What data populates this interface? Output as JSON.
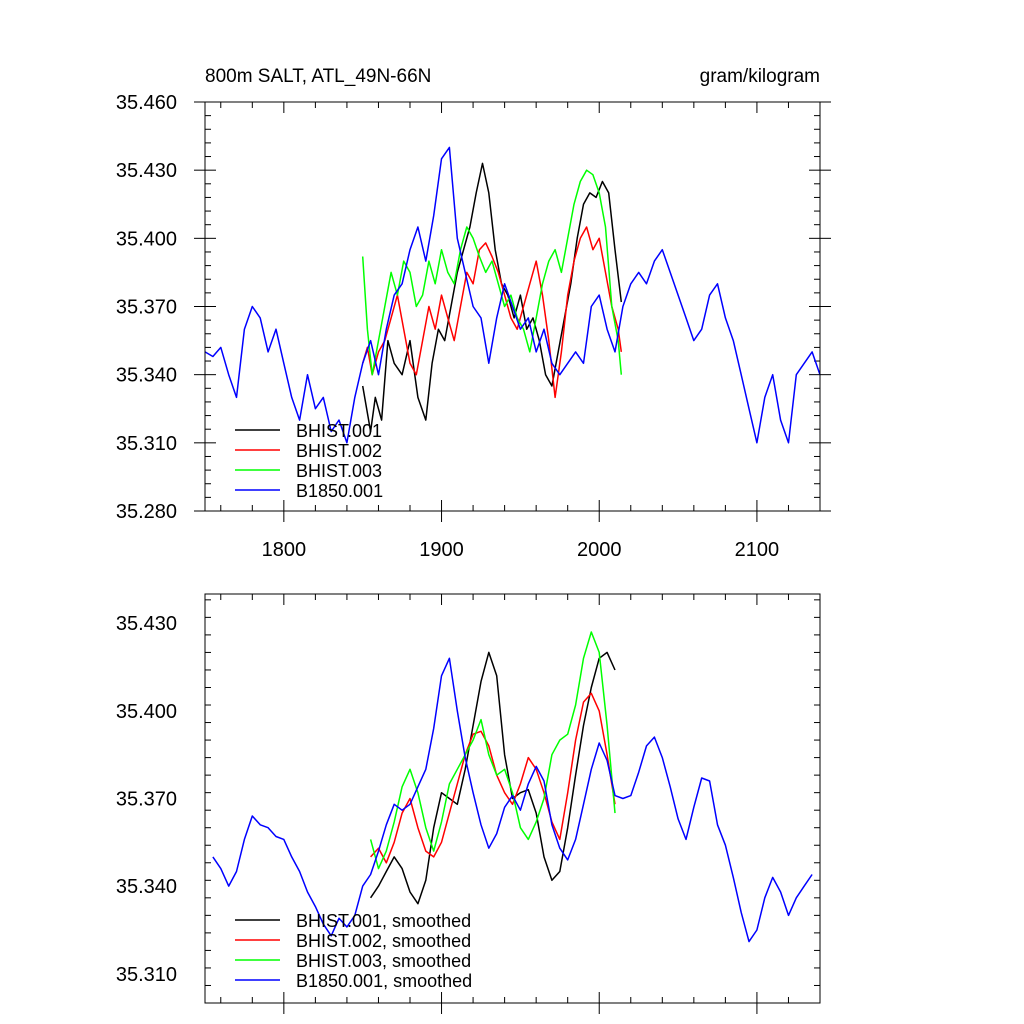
{
  "chart_data": [
    {
      "type": "line",
      "title_left": "800m SALT, ATL_49N-66N",
      "title_right": "gram/kilogram",
      "xlim": [
        1750,
        2140
      ],
      "ylim": [
        35.28,
        35.46
      ],
      "x_ticks": [
        "1800",
        "1900",
        "2000",
        "2100"
      ],
      "y_ticks": [
        "35.460",
        "35.430",
        "35.400",
        "35.370",
        "35.340",
        "35.310",
        "35.280"
      ],
      "legend_position": "bottom-left",
      "series": [
        {
          "name": "BHIST.001",
          "color": "#000000",
          "x": [
            1850,
            1855,
            1858,
            1862,
            1866,
            1870,
            1875,
            1880,
            1885,
            1890,
            1894,
            1898,
            1902,
            1906,
            1910,
            1914,
            1918,
            1922,
            1926,
            1930,
            1934,
            1938,
            1942,
            1946,
            1950,
            1954,
            1958,
            1962,
            1966,
            1970,
            1974,
            1978,
            1982,
            1986,
            1990,
            1994,
            1998,
            2002,
            2006,
            2010,
            2014
          ],
          "y": [
            35.335,
            35.315,
            35.33,
            35.32,
            35.355,
            35.345,
            35.34,
            35.355,
            35.33,
            35.32,
            35.345,
            35.36,
            35.355,
            35.37,
            35.385,
            35.395,
            35.405,
            35.42,
            35.433,
            35.42,
            35.395,
            35.38,
            35.375,
            35.365,
            35.375,
            35.36,
            35.365,
            35.355,
            35.34,
            35.335,
            35.35,
            35.365,
            35.38,
            35.4,
            35.415,
            35.42,
            35.418,
            35.425,
            35.42,
            35.395,
            35.372
          ]
        },
        {
          "name": "BHIST.002",
          "color": "#ff0000",
          "x": [
            1850,
            1853,
            1856,
            1860,
            1864,
            1868,
            1872,
            1876,
            1880,
            1884,
            1888,
            1892,
            1896,
            1900,
            1904,
            1908,
            1912,
            1916,
            1920,
            1924,
            1928,
            1932,
            1936,
            1940,
            1944,
            1948,
            1952,
            1956,
            1960,
            1964,
            1968,
            1972,
            1976,
            1980,
            1984,
            1988,
            1992,
            1996,
            2000,
            2004,
            2008,
            2012,
            2014
          ],
          "y": [
            35.345,
            35.352,
            35.34,
            35.35,
            35.355,
            35.365,
            35.375,
            35.36,
            35.345,
            35.34,
            35.355,
            35.37,
            35.36,
            35.375,
            35.365,
            35.355,
            35.37,
            35.385,
            35.38,
            35.395,
            35.398,
            35.392,
            35.385,
            35.375,
            35.365,
            35.36,
            35.37,
            35.38,
            35.39,
            35.375,
            35.355,
            35.33,
            35.35,
            35.375,
            35.39,
            35.4,
            35.405,
            35.395,
            35.4,
            35.385,
            35.37,
            35.36,
            35.35
          ]
        },
        {
          "name": "BHIST.003",
          "color": "#00ff00",
          "x": [
            1850,
            1853,
            1856,
            1860,
            1864,
            1868,
            1872,
            1876,
            1880,
            1884,
            1888,
            1892,
            1896,
            1900,
            1904,
            1908,
            1912,
            1916,
            1920,
            1924,
            1928,
            1932,
            1936,
            1940,
            1944,
            1948,
            1952,
            1956,
            1960,
            1964,
            1968,
            1972,
            1976,
            1980,
            1984,
            1988,
            1992,
            1996,
            2000,
            2004,
            2008,
            2012,
            2014
          ],
          "y": [
            35.392,
            35.36,
            35.34,
            35.355,
            35.37,
            35.385,
            35.375,
            35.39,
            35.385,
            35.37,
            35.375,
            35.39,
            35.38,
            35.395,
            35.385,
            35.38,
            35.395,
            35.405,
            35.4,
            35.392,
            35.385,
            35.39,
            35.38,
            35.37,
            35.375,
            35.365,
            35.36,
            35.35,
            35.365,
            35.38,
            35.39,
            35.395,
            35.385,
            35.4,
            35.415,
            35.425,
            35.43,
            35.428,
            35.42,
            35.405,
            35.37,
            35.355,
            35.34
          ]
        },
        {
          "name": "B1850.001",
          "color": "#0000ff",
          "x": [
            1750,
            1755,
            1760,
            1765,
            1770,
            1775,
            1780,
            1785,
            1790,
            1795,
            1800,
            1805,
            1810,
            1815,
            1820,
            1825,
            1830,
            1835,
            1840,
            1845,
            1850,
            1855,
            1860,
            1865,
            1870,
            1875,
            1880,
            1885,
            1890,
            1895,
            1900,
            1905,
            1910,
            1915,
            1920,
            1925,
            1930,
            1935,
            1940,
            1945,
            1950,
            1955,
            1960,
            1965,
            1970,
            1975,
            1980,
            1985,
            1990,
            1995,
            2000,
            2005,
            2010,
            2015,
            2020,
            2025,
            2030,
            2035,
            2040,
            2045,
            2050,
            2055,
            2060,
            2065,
            2070,
            2075,
            2080,
            2085,
            2090,
            2095,
            2100,
            2105,
            2110,
            2115,
            2120,
            2125,
            2130,
            2135,
            2140
          ],
          "y": [
            35.35,
            35.348,
            35.352,
            35.34,
            35.33,
            35.36,
            35.37,
            35.365,
            35.35,
            35.36,
            35.345,
            35.33,
            35.32,
            35.34,
            35.325,
            35.33,
            35.315,
            35.32,
            35.31,
            35.33,
            35.345,
            35.355,
            35.34,
            35.36,
            35.375,
            35.38,
            35.395,
            35.405,
            35.39,
            35.41,
            35.435,
            35.44,
            35.4,
            35.385,
            35.37,
            35.365,
            35.345,
            35.365,
            35.38,
            35.37,
            35.36,
            35.365,
            35.35,
            35.36,
            35.345,
            35.34,
            35.345,
            35.35,
            35.345,
            35.37,
            35.375,
            35.36,
            35.35,
            35.37,
            35.38,
            35.385,
            35.38,
            35.39,
            35.395,
            35.385,
            35.375,
            35.365,
            35.355,
            35.36,
            35.375,
            35.38,
            35.365,
            35.355,
            35.34,
            35.325,
            35.31,
            35.33,
            35.34,
            35.32,
            35.31,
            35.34,
            35.345,
            35.35,
            35.34
          ]
        }
      ]
    },
    {
      "type": "line",
      "xlim": [
        1750,
        2140
      ],
      "ylim": [
        35.3,
        35.44
      ],
      "y_ticks": [
        "35.430",
        "35.400",
        "35.370",
        "35.340",
        "35.310"
      ],
      "legend_position": "bottom-left",
      "series": [
        {
          "name": "BHIST.001, smoothed",
          "color": "#000000",
          "x": [
            1855,
            1860,
            1865,
            1870,
            1875,
            1880,
            1885,
            1890,
            1895,
            1900,
            1905,
            1910,
            1915,
            1920,
            1925,
            1930,
            1935,
            1940,
            1945,
            1950,
            1955,
            1960,
            1965,
            1970,
            1975,
            1980,
            1985,
            1990,
            1995,
            2000,
            2005,
            2010
          ],
          "y": [
            35.336,
            35.34,
            35.345,
            35.35,
            35.346,
            35.338,
            35.334,
            35.342,
            35.36,
            35.372,
            35.37,
            35.368,
            35.38,
            35.395,
            35.41,
            35.42,
            35.412,
            35.385,
            35.37,
            35.372,
            35.373,
            35.365,
            35.35,
            35.342,
            35.345,
            35.36,
            35.378,
            35.395,
            35.408,
            35.418,
            35.42,
            35.414
          ]
        },
        {
          "name": "BHIST.002, smoothed",
          "color": "#ff0000",
          "x": [
            1855,
            1860,
            1865,
            1870,
            1875,
            1880,
            1885,
            1890,
            1895,
            1900,
            1905,
            1910,
            1915,
            1920,
            1925,
            1930,
            1935,
            1940,
            1945,
            1950,
            1955,
            1960,
            1965,
            1970,
            1975,
            1980,
            1985,
            1990,
            1995,
            2000,
            2005,
            2010
          ],
          "y": [
            35.35,
            35.353,
            35.348,
            35.355,
            35.365,
            35.37,
            35.36,
            35.352,
            35.35,
            35.355,
            35.365,
            35.375,
            35.385,
            35.392,
            35.393,
            35.388,
            35.378,
            35.372,
            35.368,
            35.375,
            35.384,
            35.38,
            35.372,
            35.362,
            35.356,
            35.372,
            35.39,
            35.403,
            35.406,
            35.4,
            35.385,
            35.368
          ]
        },
        {
          "name": "BHIST.003, smoothed",
          "color": "#00ff00",
          "x": [
            1855,
            1860,
            1865,
            1870,
            1875,
            1880,
            1885,
            1890,
            1895,
            1900,
            1905,
            1910,
            1915,
            1920,
            1925,
            1930,
            1935,
            1940,
            1945,
            1950,
            1955,
            1960,
            1965,
            1970,
            1975,
            1980,
            1985,
            1990,
            1995,
            2000,
            2005,
            2010
          ],
          "y": [
            35.356,
            35.346,
            35.352,
            35.362,
            35.374,
            35.38,
            35.372,
            35.36,
            35.352,
            35.362,
            35.375,
            35.38,
            35.385,
            35.39,
            35.397,
            35.385,
            35.378,
            35.38,
            35.372,
            35.36,
            35.356,
            35.362,
            35.37,
            35.385,
            35.39,
            35.392,
            35.402,
            35.418,
            35.427,
            35.42,
            35.395,
            35.365
          ]
        },
        {
          "name": "B1850.001, smoothed",
          "color": "#0000ff",
          "x": [
            1755,
            1760,
            1765,
            1770,
            1775,
            1780,
            1785,
            1790,
            1795,
            1800,
            1805,
            1810,
            1815,
            1820,
            1825,
            1830,
            1835,
            1840,
            1845,
            1850,
            1855,
            1860,
            1865,
            1870,
            1875,
            1880,
            1885,
            1890,
            1895,
            1900,
            1905,
            1910,
            1915,
            1920,
            1925,
            1930,
            1935,
            1940,
            1945,
            1950,
            1955,
            1960,
            1965,
            1970,
            1975,
            1980,
            1985,
            1990,
            1995,
            2000,
            2005,
            2010,
            2015,
            2020,
            2025,
            2030,
            2035,
            2040,
            2045,
            2050,
            2055,
            2060,
            2065,
            2070,
            2075,
            2080,
            2085,
            2090,
            2095,
            2100,
            2105,
            2110,
            2115,
            2120,
            2125,
            2130,
            2135
          ],
          "y": [
            35.35,
            35.346,
            35.34,
            35.345,
            35.356,
            35.364,
            35.361,
            35.36,
            35.357,
            35.356,
            35.35,
            35.345,
            35.338,
            35.333,
            35.327,
            35.323,
            35.329,
            35.326,
            35.33,
            35.34,
            35.344,
            35.352,
            35.361,
            35.368,
            35.366,
            35.368,
            35.374,
            35.38,
            35.394,
            35.412,
            35.418,
            35.4,
            35.384,
            35.372,
            35.361,
            35.353,
            35.358,
            35.367,
            35.371,
            35.366,
            35.375,
            35.381,
            35.376,
            35.361,
            35.353,
            35.349,
            35.356,
            35.368,
            35.38,
            35.389,
            35.383,
            35.371,
            35.37,
            35.371,
            35.379,
            35.388,
            35.391,
            35.384,
            35.374,
            35.363,
            35.356,
            35.367,
            35.377,
            35.376,
            35.361,
            35.354,
            35.343,
            35.331,
            35.321,
            35.325,
            35.336,
            35.343,
            35.338,
            35.33,
            35.336,
            35.34,
            35.344
          ]
        }
      ]
    }
  ]
}
